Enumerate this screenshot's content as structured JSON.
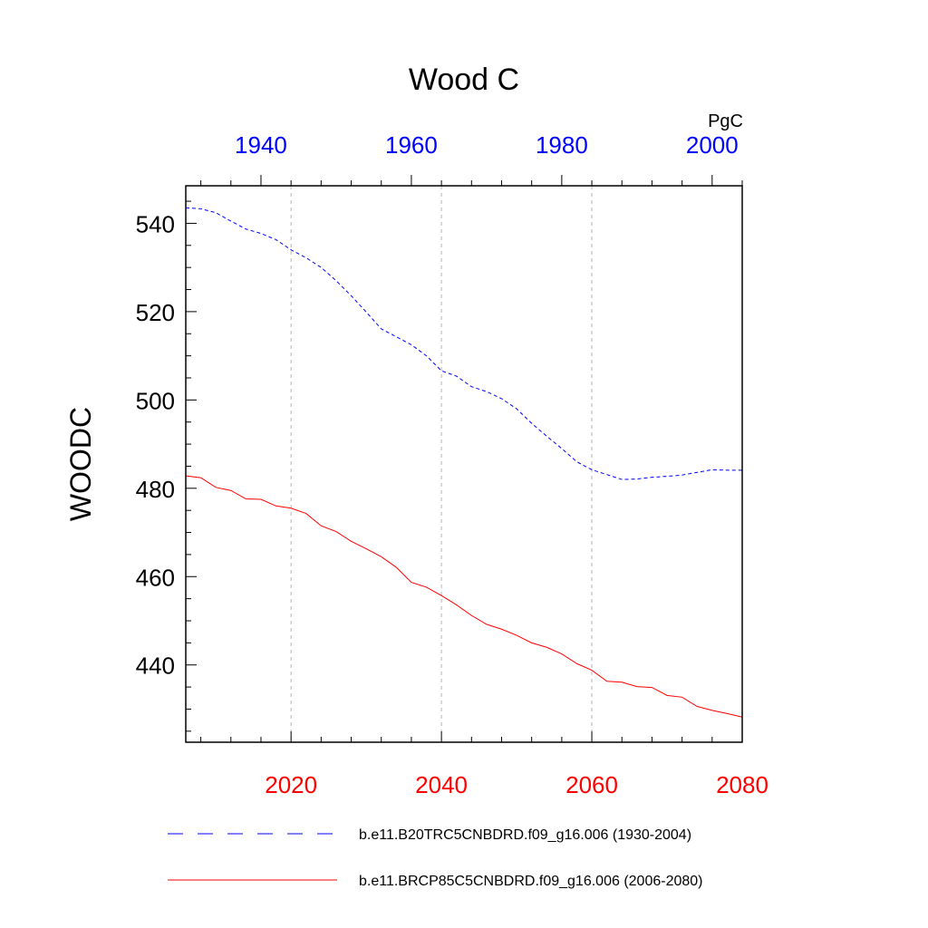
{
  "chart_data": {
    "type": "line",
    "title": "Wood C",
    "ylabel": "WOODC",
    "units": "PgC",
    "ylim": [
      422.5,
      548.5
    ],
    "yticks": [
      440,
      460,
      480,
      500,
      520,
      540
    ],
    "bottom_axis": {
      "xlim": [
        2006,
        2080
      ],
      "ticks": [
        2020,
        2040,
        2060,
        2080
      ],
      "color": "#ff0000"
    },
    "top_axis": {
      "xlim": [
        1930,
        2004
      ],
      "ticks": [
        1940,
        1960,
        1980,
        2000
      ],
      "color": "#0000ff"
    },
    "grid_x": [
      2020,
      2040,
      2060
    ],
    "legend_position": "bottom",
    "series": [
      {
        "name": "b.e11.B20TRC5CNBDRD.f09_g16.006 (1930-2004)",
        "axis": "top",
        "color": "#0000ff",
        "dash": "dashed",
        "x": [
          1930,
          1932,
          1934,
          1936,
          1938,
          1940,
          1942,
          1944,
          1946,
          1948,
          1950,
          1952,
          1954,
          1956,
          1958,
          1960,
          1962,
          1964,
          1966,
          1968,
          1970,
          1972,
          1974,
          1976,
          1978,
          1980,
          1982,
          1984,
          1986,
          1988,
          1990,
          1992,
          1994,
          1996,
          1998,
          2000,
          2002,
          2004
        ],
        "values": [
          543.5,
          543.3,
          542.4,
          540.5,
          538.7,
          537.7,
          536.3,
          534.0,
          532.2,
          530.0,
          527.0,
          523.6,
          519.9,
          516.1,
          514.3,
          512.5,
          510.0,
          506.6,
          505.4,
          503.0,
          501.9,
          500.3,
          498.0,
          494.7,
          491.8,
          489.0,
          486.0,
          484.2,
          483.1,
          482.0,
          482.1,
          482.5,
          482.7,
          483.0,
          483.6,
          484.2,
          484.1,
          484.1
        ]
      },
      {
        "name": "b.e11.BRCP85C5CNBDRD.f09_g16.006 (2006-2080)",
        "axis": "bottom",
        "color": "#ff0000",
        "dash": "solid",
        "x": [
          2006,
          2008,
          2010,
          2012,
          2014,
          2016,
          2018,
          2020,
          2022,
          2024,
          2026,
          2028,
          2030,
          2032,
          2034,
          2036,
          2038,
          2040,
          2042,
          2044,
          2046,
          2048,
          2050,
          2052,
          2054,
          2056,
          2058,
          2060,
          2062,
          2064,
          2066,
          2068,
          2070,
          2072,
          2074,
          2076,
          2078,
          2080
        ],
        "values": [
          482.8,
          482.4,
          480.2,
          479.5,
          477.6,
          477.5,
          476.0,
          475.5,
          474.3,
          471.5,
          470.2,
          468.0,
          466.3,
          464.5,
          462.1,
          458.7,
          457.6,
          455.7,
          453.6,
          451.2,
          449.2,
          448.1,
          446.7,
          445.0,
          444.0,
          442.5,
          440.3,
          438.8,
          436.3,
          436.1,
          435.1,
          434.9,
          433.1,
          432.7,
          430.6,
          429.7,
          429.0,
          428.2
        ]
      }
    ]
  }
}
